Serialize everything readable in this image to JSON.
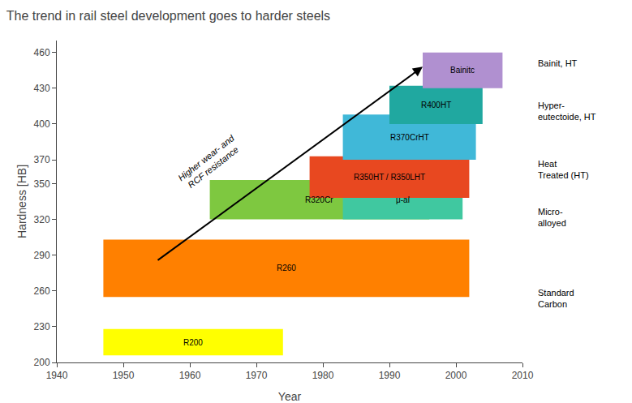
{
  "chart_data": {
    "type": "rectangles",
    "title": "The trend in rail steel development goes to harder steels",
    "xlabel": "Year",
    "ylabel": "Hardness [HB]",
    "xlim": [
      1940,
      2010
    ],
    "ylim": [
      200,
      470
    ],
    "xticks": [
      1940,
      1950,
      1960,
      1970,
      1980,
      1990,
      2000,
      2010
    ],
    "yticks": [
      200,
      230,
      260,
      290,
      320,
      350,
      370,
      400,
      430,
      460
    ],
    "grid": false,
    "rectangles": [
      {
        "label": "R200",
        "x": 1947,
        "y": 206,
        "w": 27,
        "h": 22,
        "color": "#FFFF00"
      },
      {
        "label": "R260",
        "x": 1947,
        "y": 255,
        "w": 55,
        "h": 48,
        "color": "#FF8000"
      },
      {
        "label": "R320Cr",
        "x": 1963,
        "y": 320,
        "w": 33,
        "h": 33,
        "color": "#7EC840"
      },
      {
        "label": "μ-al",
        "x": 1983,
        "y": 320,
        "w": 18,
        "h": 33,
        "color": "#40C8A0"
      },
      {
        "label": "R350HT / R350LHT",
        "x": 1978,
        "y": 338,
        "w": 24,
        "h": 35,
        "color": "#E84820"
      },
      {
        "label": "R370CrHT",
        "x": 1983,
        "y": 370,
        "w": 20,
        "h": 38,
        "color": "#40B8D8"
      },
      {
        "label": "R400HT",
        "x": 1990,
        "y": 400,
        "w": 14,
        "h": 32,
        "color": "#20A8A0"
      },
      {
        "label": "Bainitc",
        "x": 1995,
        "y": 430,
        "w": 12,
        "h": 30,
        "color": "#B090D0"
      }
    ],
    "arrow": {
      "x": [
        1955,
        1995
      ],
      "y": [
        285,
        448
      ]
    },
    "annotations": [
      {
        "text": "Higher wear- and\nRCF resistance",
        "x": 1963,
        "y": 368
      }
    ],
    "side_labels": [
      "Bainit, HT",
      "Hyper-\neutectoide, HT",
      "Heat\nTreated (HT)",
      "Micro-\nalloyed",
      "Standard\nCarbon"
    ]
  }
}
